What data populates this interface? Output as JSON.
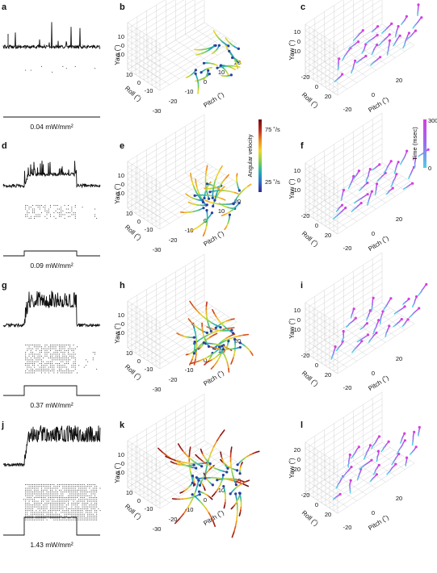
{
  "rows": [
    {
      "left": "a",
      "mid": "b",
      "right": "c",
      "intensity": "0.04 mW/mm²"
    },
    {
      "left": "d",
      "mid": "e",
      "right": "f",
      "intensity": "0.09 mW/mm²"
    },
    {
      "left": "g",
      "mid": "h",
      "right": "i",
      "intensity": "0.37 mW/mm²"
    },
    {
      "left": "j",
      "mid": "k",
      "right": "l",
      "intensity": "1.43 mW/mm²"
    }
  ],
  "axes": {
    "yaw": "Yaw (˚)",
    "roll": "Roll (˚)",
    "pitch": "Pitch (˚)",
    "mid": {
      "yaw_ticks": [
        "10",
        "0",
        "-10"
      ],
      "roll_ticks": [
        "10",
        "0",
        "-10"
      ],
      "pitch_ticks": [
        "-30",
        "-20",
        "-10",
        "0",
        "10",
        "20"
      ]
    },
    "right": {
      "yaw_ticks": [
        "10",
        "0",
        "-10"
      ],
      "yaw_ticks_l": [
        "20",
        "0",
        "-20"
      ],
      "roll_ticks": [
        "-20",
        "0",
        "20"
      ],
      "pitch_ticks": [
        "-20",
        "0",
        "20"
      ]
    }
  },
  "colorbars": {
    "angular_velocity": {
      "label": "Angular velocity",
      "high": "75 ˚/s",
      "low": "25 ˚/s",
      "colors": [
        "#3b2b8c",
        "#2f6fd0",
        "#21b5b0",
        "#8dd048",
        "#f2d629",
        "#ef8a1e",
        "#c0281d",
        "#6b0f0f"
      ]
    },
    "time": {
      "label": "Time (msec)",
      "high": "300",
      "low": "0",
      "colors": [
        "#4fd0e6",
        "#9a6cf0",
        "#d33fe0"
      ]
    }
  },
  "colors": {
    "trace": "#111111",
    "grid": "#c9c9c9"
  }
}
